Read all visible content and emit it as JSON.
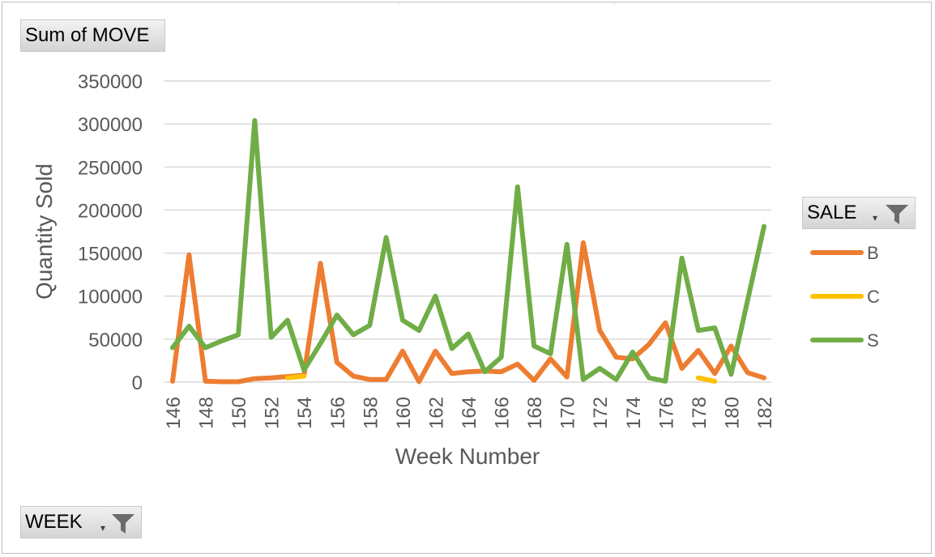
{
  "field_buttons": {
    "values_field": "Sum of MOVE",
    "legend_field": "SALE",
    "axis_field": "WEEK"
  },
  "icons": {
    "dropdown": "dropdown-arrow-icon",
    "filter": "filter-funnel-icon"
  },
  "chart_data": {
    "type": "line",
    "xlabel": "Week Number",
    "ylabel": "Quantity Sold",
    "ylim": [
      0,
      350000
    ],
    "yticks": [
      0,
      50000,
      100000,
      150000,
      200000,
      250000,
      300000,
      350000
    ],
    "x": [
      146,
      147,
      148,
      149,
      150,
      151,
      152,
      153,
      154,
      155,
      156,
      157,
      158,
      159,
      160,
      161,
      162,
      163,
      164,
      165,
      166,
      167,
      168,
      169,
      170,
      171,
      172,
      173,
      174,
      175,
      176,
      177,
      178,
      179,
      180,
      181,
      182
    ],
    "xtick_labels": [
      "146",
      "148",
      "150",
      "152",
      "154",
      "156",
      "158",
      "160",
      "162",
      "164",
      "166",
      "168",
      "170",
      "172",
      "174",
      "176",
      "178",
      "180",
      "182"
    ],
    "grid": true,
    "legend_position": "right",
    "series": [
      {
        "name": "B",
        "color": "#ED7D31",
        "values": [
          1000,
          148000,
          1000,
          500,
          500,
          4000,
          5000,
          6500,
          8000,
          138000,
          23000,
          7000,
          3000,
          3000,
          36000,
          500,
          36000,
          10000,
          12000,
          13000,
          12000,
          21000,
          2000,
          27000,
          6000,
          162000,
          60000,
          29000,
          27000,
          44000,
          69000,
          16000,
          37000,
          10000,
          42000,
          11000,
          5000
        ]
      },
      {
        "name": "C",
        "color": "#FFC000",
        "values": [
          null,
          null,
          null,
          null,
          null,
          null,
          null,
          5000,
          7000,
          null,
          null,
          null,
          null,
          null,
          null,
          null,
          null,
          null,
          null,
          null,
          null,
          null,
          null,
          null,
          null,
          null,
          null,
          null,
          null,
          null,
          null,
          null,
          5000,
          1000,
          null,
          null,
          null
        ]
      },
      {
        "name": "S",
        "color": "#70AD47",
        "values": [
          40000,
          65000,
          40000,
          48000,
          55000,
          304000,
          52000,
          72000,
          14000,
          45000,
          78000,
          55000,
          66000,
          168000,
          72000,
          60000,
          100000,
          39000,
          56000,
          12000,
          29000,
          227000,
          42000,
          33000,
          160000,
          3000,
          16000,
          3000,
          35000,
          5000,
          1000,
          144000,
          60000,
          63000,
          9000,
          95000,
          181000
        ]
      }
    ]
  }
}
